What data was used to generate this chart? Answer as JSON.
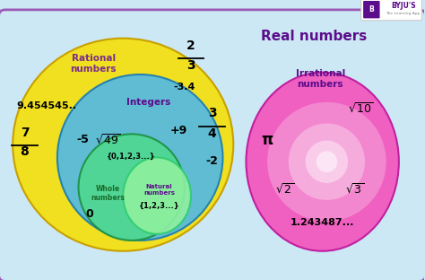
{
  "bg_color": "#cce8f4",
  "border_color": "#9b59b6",
  "rational_color": "#f0e020",
  "integers_color": "#50b8e8",
  "whole_color": "#50d890",
  "natural_color": "#90f0a0",
  "irrational_color": "#f060c0",
  "rational_label": "Rational\nnumbers",
  "integers_label": "Integers",
  "whole_label": "Whole\nnumbers",
  "natural_label": "Natural\nnumbers",
  "irrational_label": "Irrational\nnumbers",
  "real_numbers_title": "Real numbers",
  "purple_text": "#7b2d8b",
  "dark_purple": "#5b0d8b",
  "dark_blue_text": "#2255aa",
  "dark_green_text": "#1a6b2a"
}
